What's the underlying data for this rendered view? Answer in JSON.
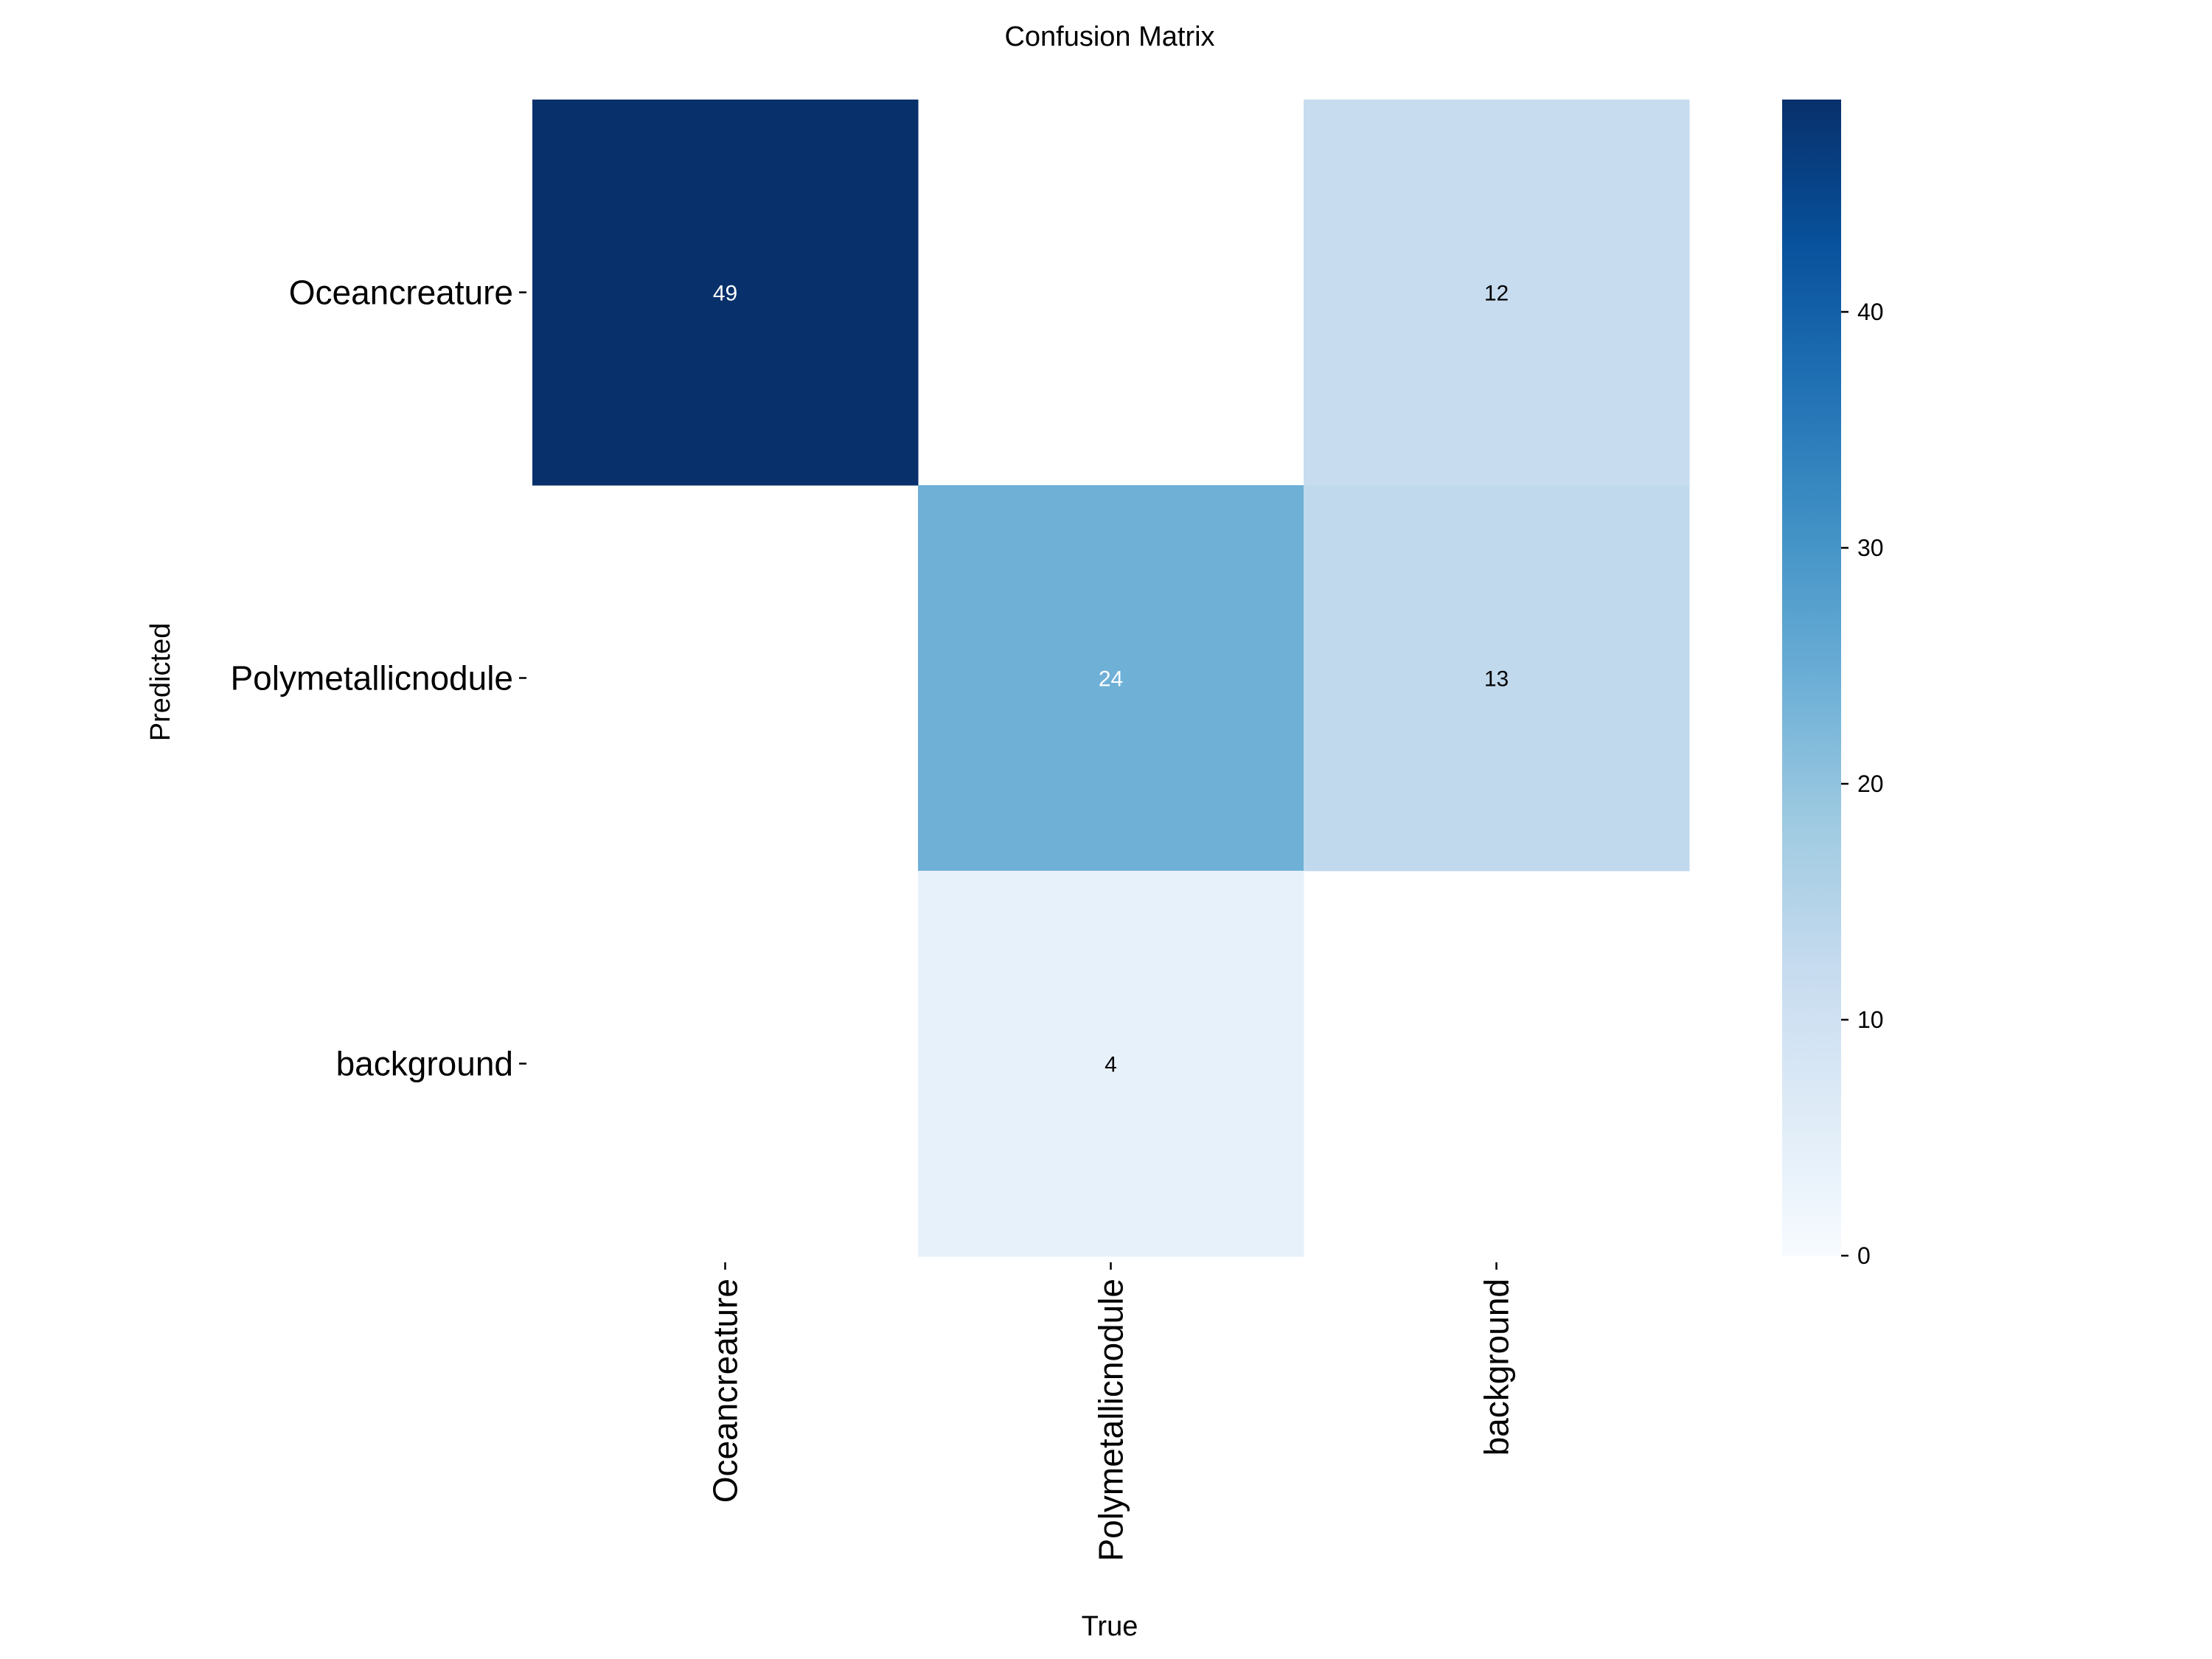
{
  "chart_data": {
    "type": "heatmap",
    "title": "Confusion Matrix",
    "xlabel": "True",
    "ylabel": "Predicted",
    "x_categories": [
      "Oceancreature",
      "Polymetallicnodule",
      "background"
    ],
    "y_categories": [
      "Oceancreature",
      "Polymetallicnodule",
      "background"
    ],
    "matrix": [
      [
        49,
        null,
        12
      ],
      [
        null,
        24,
        13
      ],
      [
        null,
        4,
        null
      ]
    ],
    "colormap": "Blues",
    "colorbar": {
      "min": 0,
      "max": 49,
      "ticks": [
        0,
        10,
        20,
        30,
        40
      ]
    },
    "colors": {
      "blues_stops": [
        "#f7fbff",
        "#deebf7",
        "#c6dbef",
        "#9ecae1",
        "#6baed6",
        "#4292c6",
        "#2171b5",
        "#08519c",
        "#08306b"
      ],
      "light_text": "#ffffff",
      "dark_text": "#000000"
    }
  }
}
